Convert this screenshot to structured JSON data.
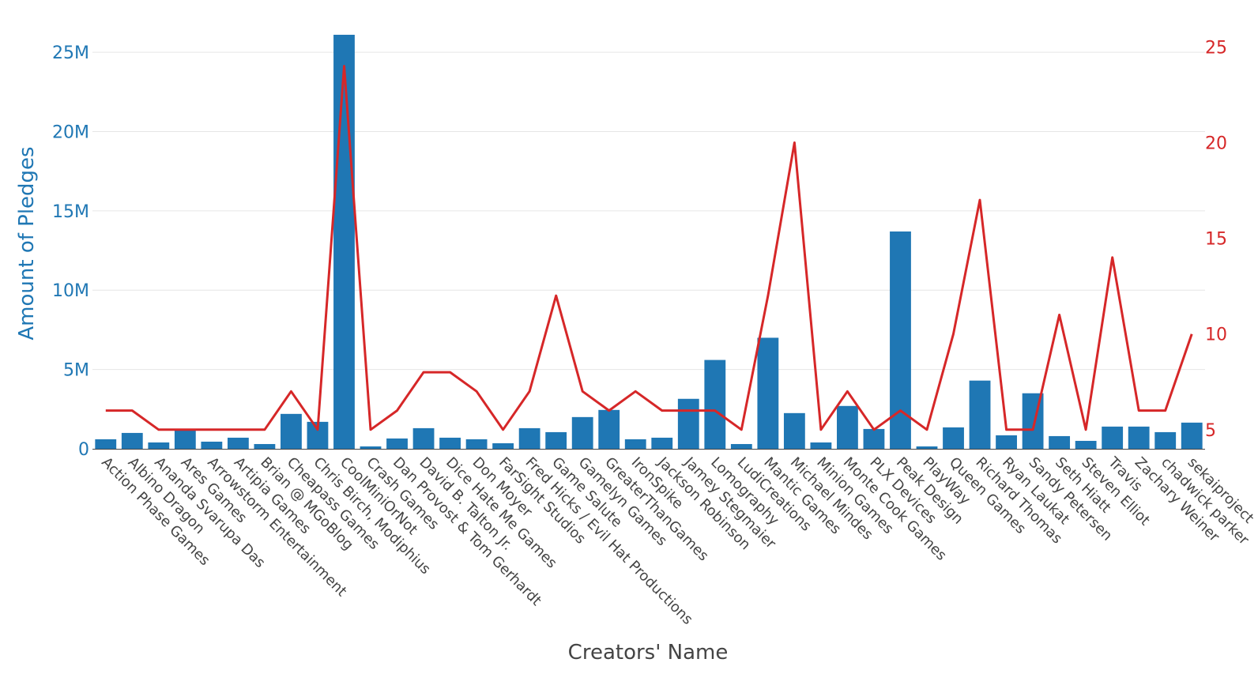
{
  "colors": {
    "bars": "#1f77b4",
    "line": "#d62728",
    "grid": "#e6e6e6",
    "tick_text": "#444444"
  },
  "chart_data": {
    "type": "bar",
    "xlabel": "Creators' Name",
    "ylabel": "Amount of Pledges",
    "y2label": "",
    "ylim": [
      0,
      26300000
    ],
    "y2lim": [
      4,
      25.8
    ],
    "grid": true,
    "yticks": [
      {
        "value": 0,
        "label": "0"
      },
      {
        "value": 5000000,
        "label": "5M"
      },
      {
        "value": 10000000,
        "label": "10M"
      },
      {
        "value": 15000000,
        "label": "15M"
      },
      {
        "value": 20000000,
        "label": "20M"
      },
      {
        "value": 25000000,
        "label": "25M"
      }
    ],
    "y2ticks": [
      {
        "value": 5,
        "label": "5"
      },
      {
        "value": 10,
        "label": "10"
      },
      {
        "value": 15,
        "label": "15"
      },
      {
        "value": 20,
        "label": "20"
      },
      {
        "value": 25,
        "label": "25"
      }
    ],
    "categories": [
      "Action Phase Games",
      "Albino Dragon",
      "Ananda Svarupa Das",
      "Ares Games",
      "Arrowstorm Entertainment",
      "Artipia Games",
      "Brian @ MGoBlog",
      "Cheapass Games",
      "Chris Birch, Modiphius",
      "CoolMiniOrNot",
      "Crash Games",
      "Dan Provost & Tom Gerhardt",
      "David B. Talton Jr.",
      "Dice Hate Me Games",
      "Don Moyer",
      "FarSight Studios",
      "Fred Hicks / Evil Hat Productions",
      "Game Salute",
      "Gamelyn Games",
      "GreaterThanGames",
      "IronSpike",
      "Jackson Robinson",
      "Jamey Stegmaier",
      "Lomography",
      "LudiCreations",
      "Mantic Games",
      "Michael Mindes",
      "Minion Games",
      "Monte Cook Games",
      "PLX Devices",
      "Peak Design",
      "PlayWay",
      "Queen Games",
      "Richard Thomas",
      "Ryan Laukat",
      "Sandy Petersen",
      "Seth Hiatt",
      "Steven Elliot",
      "Travis",
      "Zachary Weiner",
      "chadwick parker",
      "sekaiproject"
    ],
    "series": [
      {
        "type": "bar",
        "axis": "left",
        "values": [
          600000,
          1000000,
          400000,
          1150000,
          450000,
          700000,
          300000,
          2200000,
          1700000,
          26100000,
          150000,
          650000,
          1300000,
          700000,
          600000,
          350000,
          1300000,
          1050000,
          2000000,
          2450000,
          600000,
          700000,
          3150000,
          5600000,
          300000,
          7000000,
          2250000,
          400000,
          2700000,
          1250000,
          13700000,
          150000,
          1350000,
          4300000,
          850000,
          3500000,
          800000,
          500000,
          1400000,
          1400000,
          1050000,
          1650000
        ]
      },
      {
        "type": "line",
        "axis": "right",
        "values": [
          6,
          6,
          5,
          5,
          5,
          5,
          5,
          7,
          5,
          24,
          5,
          6,
          8,
          8,
          7,
          5,
          7,
          12,
          7,
          6,
          7,
          6,
          6,
          6,
          5,
          12,
          20,
          5,
          7,
          5,
          6,
          5,
          10,
          17,
          5,
          5,
          11,
          5,
          14,
          6,
          6,
          10
        ]
      }
    ]
  }
}
